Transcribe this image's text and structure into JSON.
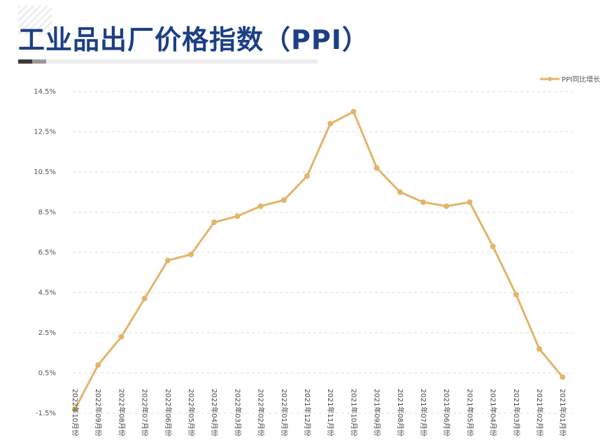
{
  "header": {
    "title": "工业品出厂价格指数（PPI）"
  },
  "chart_data": {
    "type": "line",
    "legend": {
      "position": "top-right"
    },
    "grid": true,
    "ylim": [
      -1.5,
      14.5
    ],
    "yticks": [
      "14.5%",
      "12.5%",
      "10.5%",
      "8.5%",
      "6.5%",
      "4.5%",
      "2.5%",
      "0.5%",
      "-1.5%"
    ],
    "ytick_values": [
      14.5,
      12.5,
      10.5,
      8.5,
      6.5,
      4.5,
      2.5,
      0.5,
      -1.5
    ],
    "categories": [
      "2022年10月份",
      "2022年09月份",
      "2022年08月份",
      "2022年07月份",
      "2022年06月份",
      "2022年05月份",
      "2022年04月份",
      "2022年03月份",
      "2022年02月份",
      "2022年01月份",
      "2021年12月份",
      "2021年11月份",
      "2021年10月份",
      "2021年09月份",
      "2021年08月份",
      "2021年07月份",
      "2021年06月份",
      "2021年05月份",
      "2021年04月份",
      "2021年03月份",
      "2021年02月份",
      "2021年01月份"
    ],
    "series": [
      {
        "name": "PPI同比增长",
        "color": "#e3b56a",
        "values": [
          -1.3,
          0.9,
          2.3,
          4.2,
          6.1,
          6.4,
          8.0,
          8.3,
          8.8,
          9.1,
          10.3,
          12.9,
          13.5,
          10.7,
          9.5,
          9.0,
          8.8,
          9.0,
          6.8,
          4.4,
          1.7,
          0.3
        ]
      }
    ]
  }
}
